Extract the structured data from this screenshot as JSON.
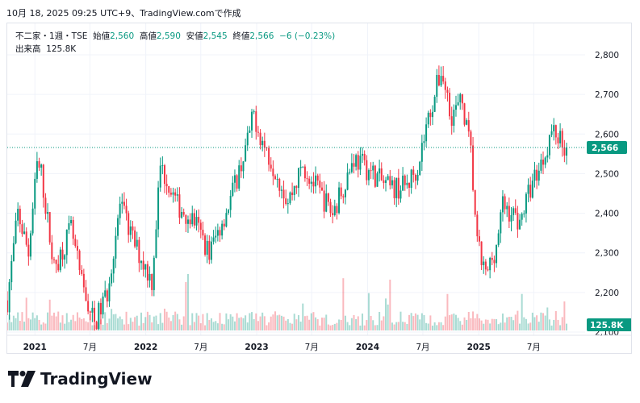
{
  "header": {
    "timestamp": "10月 18, 2025 09:25 UTC+9、TradingView.comで作成"
  },
  "legend": {
    "symbol": "不二家・1週・TSE",
    "open_label": "始値",
    "open": "2,560",
    "high_label": "高値",
    "high": "2,590",
    "low_label": "安値",
    "low": "2,545",
    "close_label": "終値",
    "close": "2,566",
    "change": "−6 (−0.23%)",
    "volume_label": "出来高",
    "volume": "125.8K"
  },
  "brand": {
    "name": "TradingView"
  },
  "colors": {
    "up": "#089981",
    "down": "#f23645",
    "text": "#131722",
    "grid": "#f0f3fa"
  },
  "chart_data": {
    "type": "candlestick",
    "price_axis": {
      "ticks": [
        2100,
        2200,
        2300,
        2400,
        2500,
        2600,
        2700,
        2800
      ],
      "tick_labels": [
        "2,100",
        "2,200",
        "2,300",
        "2,400",
        "2,500",
        "2,600",
        "2,700",
        "2,800"
      ]
    },
    "time_axis": {
      "labels": [
        "2021",
        "7月",
        "2022",
        "7月",
        "2023",
        "7月",
        "2024",
        "7月",
        "2025",
        "7月"
      ],
      "dates": [
        "2021-01",
        "2021-07",
        "2022-01",
        "2022-07",
        "2023-01",
        "2023-07",
        "2024-01",
        "2024-07",
        "2025-01",
        "2025-07"
      ]
    },
    "last_price": 2566,
    "last_price_label": "2,566",
    "last_volume_label": "125.8K",
    "anchors": [
      [
        "2020-10-02",
        2180
      ],
      [
        "2020-11-06",
        2400
      ],
      [
        "2020-12-11",
        2300
      ],
      [
        "2021-01-08",
        2520
      ],
      [
        "2021-01-22",
        2500
      ],
      [
        "2021-03-05",
        2260
      ],
      [
        "2021-04-30",
        2360
      ],
      [
        "2021-06-04",
        2220
      ],
      [
        "2021-07-16",
        2120
      ],
      [
        "2021-08-27",
        2200
      ],
      [
        "2021-10-08",
        2420
      ],
      [
        "2021-11-26",
        2320
      ],
      [
        "2022-01-21",
        2230
      ],
      [
        "2022-02-18",
        2520
      ],
      [
        "2022-04-15",
        2420
      ],
      [
        "2022-06-10",
        2380
      ],
      [
        "2022-07-29",
        2300
      ],
      [
        "2022-09-30",
        2420
      ],
      [
        "2022-11-25",
        2560
      ],
      [
        "2022-12-23",
        2650
      ],
      [
        "2023-01-20",
        2580
      ],
      [
        "2023-03-10",
        2500
      ],
      [
        "2023-04-14",
        2430
      ],
      [
        "2023-06-02",
        2520
      ],
      [
        "2023-07-28",
        2450
      ],
      [
        "2023-09-08",
        2400
      ],
      [
        "2023-11-17",
        2540
      ],
      [
        "2024-01-19",
        2500
      ],
      [
        "2024-03-15",
        2460
      ],
      [
        "2024-05-10",
        2470
      ],
      [
        "2024-06-14",
        2520
      ],
      [
        "2024-07-19",
        2640
      ],
      [
        "2024-08-30",
        2760
      ],
      [
        "2024-10-04",
        2650
      ],
      [
        "2024-11-08",
        2680
      ],
      [
        "2024-12-06",
        2550
      ],
      [
        "2024-12-27",
        2320
      ],
      [
        "2025-01-24",
        2240
      ],
      [
        "2025-02-28",
        2320
      ],
      [
        "2025-03-21",
        2420
      ],
      [
        "2025-05-16",
        2380
      ],
      [
        "2025-06-27",
        2480
      ],
      [
        "2025-08-01",
        2540
      ],
      [
        "2025-08-29",
        2610
      ],
      [
        "2025-09-26",
        2590
      ],
      [
        "2025-10-17",
        2566
      ]
    ]
  }
}
